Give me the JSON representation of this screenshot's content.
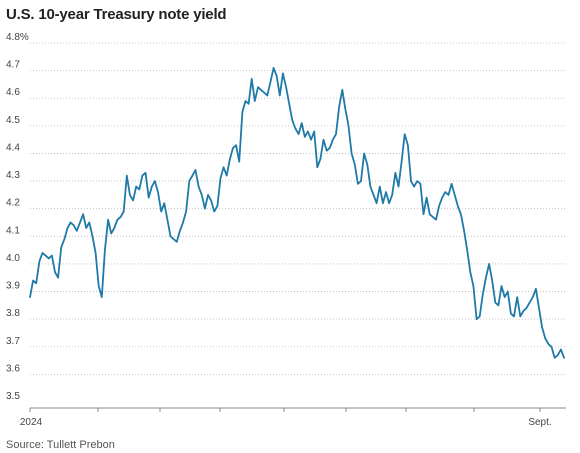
{
  "chart_data": {
    "type": "line",
    "title": "U.S. 10-year Treasury note yield",
    "source": "Source: Tullett Prebon",
    "xlabel": "",
    "ylabel": "",
    "ylim": [
      3.5,
      4.8
    ],
    "y_ticks": [
      {
        "value": 4.8,
        "label": "4.8%"
      },
      {
        "value": 4.7,
        "label": "4.7"
      },
      {
        "value": 4.6,
        "label": "4.6"
      },
      {
        "value": 4.5,
        "label": "4.5"
      },
      {
        "value": 4.4,
        "label": "4.4"
      },
      {
        "value": 4.3,
        "label": "4.3"
      },
      {
        "value": 4.2,
        "label": "4.2"
      },
      {
        "value": 4.1,
        "label": "4.1"
      },
      {
        "value": 4.0,
        "label": "4.0"
      },
      {
        "value": 3.9,
        "label": "3.9"
      },
      {
        "value": 3.8,
        "label": "3.8"
      },
      {
        "value": 3.7,
        "label": "3.7"
      },
      {
        "value": 3.6,
        "label": "3.6"
      },
      {
        "value": 3.5,
        "label": "3.5"
      }
    ],
    "x_labels": [
      "2024",
      "Sept."
    ],
    "grid": "horizontal-dotted",
    "color": "#1f7aa8",
    "series": [
      {
        "values": [
          3.88,
          3.94,
          3.93,
          4.01,
          4.04,
          4.03,
          4.02,
          4.03,
          3.97,
          3.95,
          4.06,
          4.09,
          4.13,
          4.15,
          4.14,
          4.12,
          4.15,
          4.18,
          4.13,
          4.15,
          4.1,
          4.04,
          3.92,
          3.88,
          4.05,
          4.16,
          4.11,
          4.13,
          4.16,
          4.17,
          4.19,
          4.32,
          4.25,
          4.23,
          4.28,
          4.27,
          4.32,
          4.33,
          4.24,
          4.28,
          4.3,
          4.26,
          4.19,
          4.22,
          4.16,
          4.1,
          4.09,
          4.08,
          4.12,
          4.15,
          4.19,
          4.3,
          4.32,
          4.34,
          4.28,
          4.25,
          4.2,
          4.25,
          4.23,
          4.19,
          4.21,
          4.31,
          4.35,
          4.32,
          4.38,
          4.42,
          4.43,
          4.37,
          4.55,
          4.59,
          4.58,
          4.67,
          4.59,
          4.64,
          4.63,
          4.62,
          4.61,
          4.66,
          4.71,
          4.68,
          4.61,
          4.69,
          4.64,
          4.58,
          4.52,
          4.49,
          4.47,
          4.51,
          4.46,
          4.48,
          4.45,
          4.48,
          4.35,
          4.38,
          4.45,
          4.41,
          4.42,
          4.45,
          4.47,
          4.57,
          4.63,
          4.56,
          4.5,
          4.4,
          4.36,
          4.29,
          4.3,
          4.4,
          4.36,
          4.28,
          4.25,
          4.22,
          4.28,
          4.22,
          4.26,
          4.22,
          4.25,
          4.33,
          4.28,
          4.37,
          4.47,
          4.43,
          4.3,
          4.28,
          4.3,
          4.29,
          4.18,
          4.24,
          4.18,
          4.17,
          4.16,
          4.21,
          4.24,
          4.26,
          4.25,
          4.29,
          4.25,
          4.21,
          4.18,
          4.12,
          4.05,
          3.97,
          3.92,
          3.8,
          3.81,
          3.89,
          3.95,
          4.0,
          3.94,
          3.86,
          3.85,
          3.92,
          3.88,
          3.9,
          3.82,
          3.81,
          3.88,
          3.81,
          3.83,
          3.84,
          3.86,
          3.88,
          3.91,
          3.84,
          3.77,
          3.73,
          3.71,
          3.7,
          3.66,
          3.67,
          3.69,
          3.66
        ]
      }
    ]
  }
}
